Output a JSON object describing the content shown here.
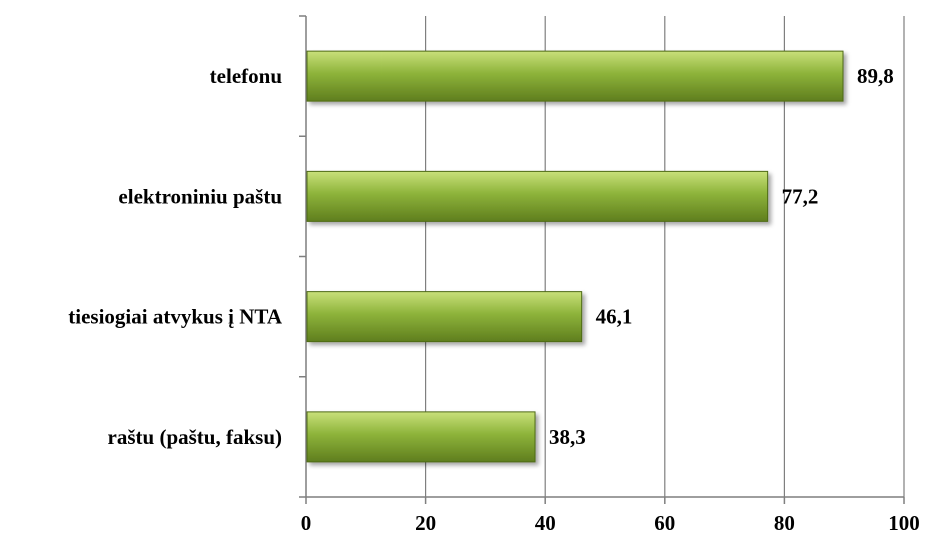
{
  "chart_data": {
    "type": "bar",
    "orientation": "horizontal",
    "categories": [
      "telefonu",
      "elektroniniu paštu",
      "tiesiogiai atvykus į NTA",
      "raštu (paštu, faksu)"
    ],
    "values": [
      89.8,
      77.2,
      46.1,
      38.3
    ],
    "data_labels": [
      "89,8",
      "77,2",
      "46,1",
      "38,3"
    ],
    "xlim": [
      0,
      100
    ],
    "x_ticks": [
      0,
      20,
      40,
      60,
      80,
      100
    ],
    "x_tick_labels": [
      "0",
      "20",
      "40",
      "60",
      "80",
      "100"
    ],
    "grid": "vertical",
    "legend": "none",
    "bar_color": "#8db33a",
    "bar_color_light": "#c9e07a",
    "bar_color_dark": "#5f7e1e"
  }
}
